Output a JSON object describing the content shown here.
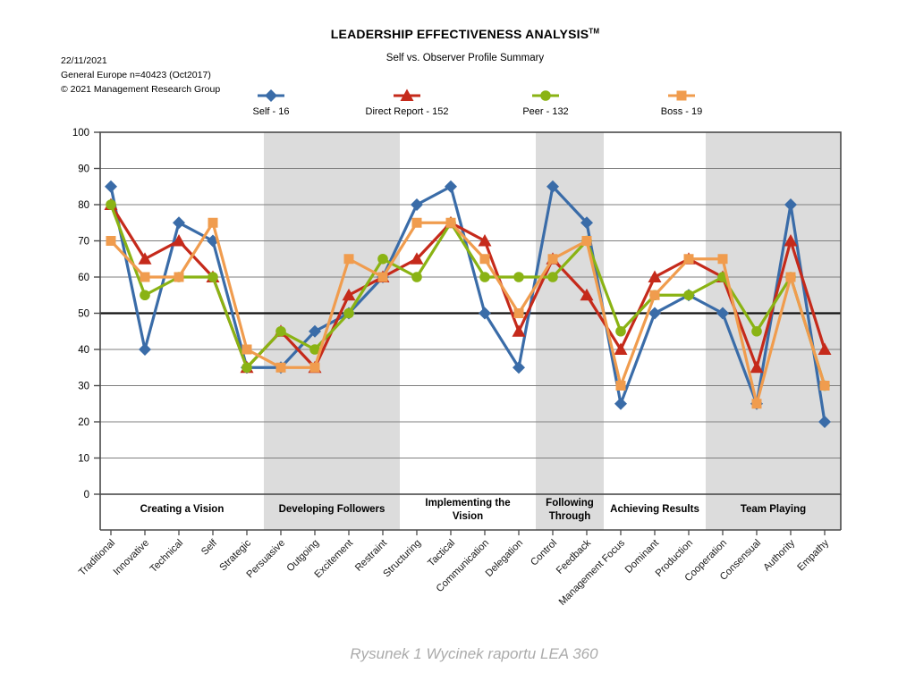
{
  "header": {
    "date": "22/11/2021",
    "sample": "General Europe n=40423 (Oct2017)",
    "copyright": "© 2021 Management Research Group"
  },
  "title": "LEADERSHIP EFFECTIVENESS ANALYSIS",
  "title_tm": "TM",
  "subtitle": "Self vs. Observer Profile Summary",
  "caption": "Rysunek 1 Wycinek raportu LEA 360",
  "chart_data": {
    "type": "line",
    "ylim": [
      0,
      100
    ],
    "ytick": 10,
    "reference_line": 50,
    "grid": true,
    "legend_position": "top",
    "band_color": "#DCDCDC",
    "categories": [
      "Traditional",
      "Innovative",
      "Technical",
      "Self",
      "Strategic",
      "Persuasive",
      "Outgoing",
      "Excitement",
      "Restraint",
      "Structuring",
      "Tactical",
      "Communication",
      "Delegation",
      "Control",
      "Feedback",
      "Management Focus",
      "Dominant",
      "Production",
      "Cooperation",
      "Consensual",
      "Authority",
      "Empathy"
    ],
    "groups": [
      {
        "label": "Creating a Vision",
        "label_lines": [
          "Creating a Vision"
        ],
        "count": 5,
        "shaded": false
      },
      {
        "label": "Developing Followers",
        "label_lines": [
          "Developing Followers"
        ],
        "count": 4,
        "shaded": true
      },
      {
        "label": "Implementing the Vision",
        "label_lines": [
          "Implementing the",
          "Vision"
        ],
        "count": 4,
        "shaded": false
      },
      {
        "label": "Following Through",
        "label_lines": [
          "Following",
          "Through"
        ],
        "count": 2,
        "shaded": true
      },
      {
        "label": "Achieving Results",
        "label_lines": [
          "Achieving Results"
        ],
        "count": 3,
        "shaded": false
      },
      {
        "label": "Team Playing",
        "label_lines": [
          "Team Playing"
        ],
        "count": 4,
        "shaded": true
      }
    ],
    "series": [
      {
        "name": "Self - 16",
        "marker": "diamond",
        "color": "#3A6CA8",
        "values": [
          85,
          40,
          75,
          70,
          35,
          35,
          45,
          50,
          60,
          80,
          85,
          50,
          35,
          85,
          75,
          25,
          50,
          55,
          50,
          25,
          80,
          20
        ]
      },
      {
        "name": "Direct Report - 152",
        "marker": "triangle",
        "color": "#C52A1B",
        "values": [
          80,
          65,
          70,
          60,
          35,
          45,
          35,
          55,
          60,
          65,
          75,
          70,
          45,
          65,
          55,
          40,
          60,
          65,
          60,
          35,
          70,
          40
        ]
      },
      {
        "name": "Peer - 132",
        "marker": "circle",
        "color": "#8AB314",
        "values": [
          80,
          55,
          60,
          60,
          35,
          45,
          40,
          50,
          65,
          60,
          75,
          60,
          60,
          60,
          70,
          45,
          55,
          55,
          60,
          45,
          60,
          30
        ]
      },
      {
        "name": "Boss - 19",
        "marker": "square",
        "color": "#F09C4E",
        "values": [
          70,
          60,
          60,
          75,
          40,
          35,
          35,
          65,
          60,
          75,
          75,
          65,
          50,
          65,
          70,
          30,
          55,
          65,
          65,
          25,
          60,
          30
        ]
      }
    ]
  }
}
